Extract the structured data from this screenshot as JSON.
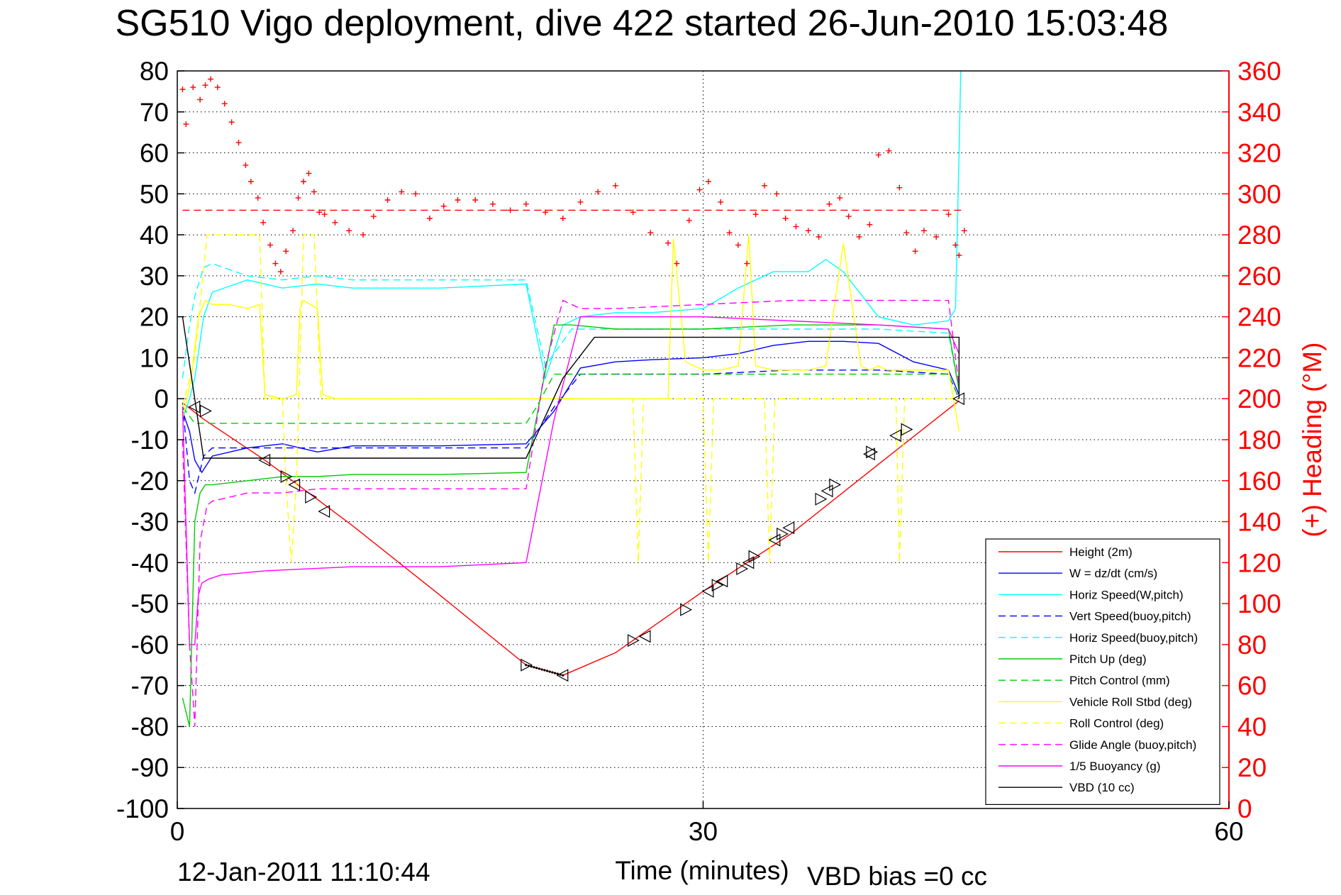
{
  "chart_data": {
    "type": "line",
    "title": "SG510 Vigo deployment, dive 422 started 26-Jun-2010 15:03:48",
    "xlabel": "Time (minutes)",
    "ylabel": "",
    "ylabel_right": "(+) Heading (°M)",
    "xlim": [
      0,
      60
    ],
    "ylim": [
      -100,
      80
    ],
    "ylim_right": [
      0,
      360
    ],
    "xticks": [
      "0",
      "30",
      "60"
    ],
    "yticks": [
      "80",
      "70",
      "60",
      "50",
      "40",
      "30",
      "20",
      "10",
      "0",
      "-10",
      "-20",
      "-30",
      "-40",
      "-50",
      "-60",
      "-70",
      "-80",
      "-90",
      "-100"
    ],
    "yticks_right": [
      "360",
      "340",
      "320",
      "300",
      "280",
      "260",
      "240",
      "220",
      "200",
      "180",
      "160",
      "140",
      "120",
      "100",
      "80",
      "60",
      "40",
      "20",
      "0"
    ],
    "grid": true,
    "legend_position": "bottom-right",
    "footer_left": "12-Jan-2011 11:10:44",
    "footer_right": "VBD bias =0 cc",
    "colors": {
      "axis": "#000000",
      "right_axis": "#ff0000",
      "grid": "#000000"
    },
    "series": [
      {
        "name": "Height (2m)",
        "color": "#ff0000",
        "dash": "",
        "x": [
          0.3,
          1.5,
          5,
          10,
          15,
          19.9,
          22,
          25,
          30,
          35,
          40,
          44.6
        ],
        "y": [
          -1,
          -5,
          -15,
          -31,
          -48,
          -65,
          -67.5,
          -62,
          -47,
          -33,
          -16,
          -0.5
        ]
      },
      {
        "name": "W = dz/dt (cm/s)",
        "color": "#0000ff",
        "dash": "",
        "x": [
          0.3,
          0.7,
          1,
          1.4,
          2,
          4,
          6,
          8,
          10,
          15,
          19.9,
          21.5,
          23,
          25,
          27,
          30,
          32,
          34,
          36,
          38,
          40,
          42,
          44,
          44.6
        ],
        "y": [
          -3,
          -8,
          -15,
          -18,
          -14,
          -12,
          -11,
          -13,
          -11.5,
          -11.5,
          -11,
          -3,
          7.5,
          9,
          9.5,
          10,
          11,
          13,
          14,
          14,
          13.5,
          9,
          7,
          1
        ]
      },
      {
        "name": "Horiz Speed(W,pitch)",
        "color": "#00ffff",
        "dash": "",
        "x": [
          0.3,
          0.7,
          1,
          1.5,
          2,
          4,
          6,
          8,
          10,
          15,
          19.9,
          21,
          22,
          23,
          25,
          27,
          30,
          32,
          34,
          36,
          37,
          38,
          40,
          42,
          44,
          44.4,
          44.6,
          44.7
        ],
        "y": [
          -5,
          0,
          5,
          20,
          26,
          29,
          27,
          28,
          27,
          27,
          28,
          5,
          18,
          20,
          21,
          21,
          22,
          27,
          31,
          31,
          34,
          31,
          20,
          18,
          19,
          22,
          60,
          80
        ]
      },
      {
        "name": "Vert Speed(buoy,pitch)",
        "color": "#0000ff",
        "dash": "10,6",
        "x": [
          0.3,
          0.7,
          1,
          1.5,
          2,
          4,
          6,
          8,
          10,
          15,
          19.9,
          21.5,
          23,
          25,
          30,
          35,
          40,
          44,
          44.6
        ],
        "y": [
          -1,
          -20,
          -23,
          -14,
          -12,
          -12,
          -12,
          -12,
          -12,
          -12,
          -12,
          -2,
          6,
          6,
          6,
          7,
          7,
          6,
          0
        ]
      },
      {
        "name": "Horiz Speed(buoy,pitch)",
        "color": "#00ffff",
        "dash": "10,6",
        "x": [
          0.3,
          0.7,
          1,
          1.5,
          2,
          4,
          6,
          8,
          10,
          15,
          19.9,
          21,
          22.5,
          25,
          30,
          35,
          40,
          44,
          44.6
        ],
        "y": [
          5,
          18,
          25,
          32,
          33,
          30,
          29,
          30,
          29,
          29,
          29,
          8,
          17,
          17,
          17,
          17,
          17,
          16,
          2
        ]
      },
      {
        "name": "Pitch Up (deg)",
        "color": "#00cc00",
        "dash": "",
        "x": [
          0.3,
          0.7,
          1,
          1.3,
          1.6,
          2,
          4,
          6,
          8,
          10,
          15,
          19.9,
          21.5,
          22.5,
          25,
          30,
          35,
          40,
          44,
          44.6
        ],
        "y": [
          -73,
          -80,
          -30,
          -23,
          -21,
          -21,
          -20,
          -19,
          -19,
          -18.5,
          -18.5,
          -18,
          18,
          18,
          17,
          17,
          18,
          18,
          17,
          2
        ]
      },
      {
        "name": "Pitch Control (mm)",
        "color": "#00cc00",
        "dash": "10,6",
        "x": [
          0.3,
          1,
          1.5,
          4,
          10,
          15,
          19.9,
          20.5,
          21.5,
          25,
          30,
          35,
          40,
          44,
          44.6
        ],
        "y": [
          -2,
          -6,
          -6,
          -6,
          -6,
          -6,
          -6,
          -2,
          6,
          6,
          6,
          6,
          6,
          6,
          0
        ]
      },
      {
        "name": "Vehicle Roll Stbd (deg)",
        "color": "#ffff00",
        "dash": "",
        "x": [
          0.3,
          0.8,
          1.2,
          1.6,
          2,
          3,
          4,
          4.7,
          5,
          6,
          6.8,
          7,
          7.2,
          8,
          8.3,
          9,
          10,
          15,
          19.9,
          21,
          25,
          28,
          28.3,
          29,
          30,
          31,
          32,
          32.6,
          33,
          34,
          36,
          37,
          38,
          39,
          39.5,
          40,
          40.5,
          41,
          44,
          44.6
        ],
        "y": [
          -5,
          5,
          20,
          24,
          23,
          23,
          22,
          23,
          1,
          0,
          1,
          22,
          24,
          22,
          1,
          0,
          0,
          0,
          0,
          0,
          0,
          0,
          39,
          9,
          7,
          7,
          8,
          40,
          8,
          7,
          7,
          8,
          38,
          8,
          7,
          8,
          7,
          7,
          7,
          -8
        ]
      },
      {
        "name": "Roll Control (deg)",
        "color": "#ffff00",
        "dash": "10,6",
        "x": [
          0.3,
          1,
          1.7,
          4.7,
          5,
          6,
          6.2,
          6.5,
          6.8,
          7.2,
          7.8,
          8.2,
          8.4,
          15,
          19.9,
          25,
          26,
          26.3,
          26.6,
          27,
          30,
          30.3,
          30.6,
          31,
          33.5,
          33.8,
          34.1,
          34.5,
          36,
          37,
          38,
          41,
          41.2,
          41.5,
          41.8,
          42.2,
          44,
          44.6
        ],
        "y": [
          -2,
          10,
          40,
          40,
          0,
          0,
          -20,
          -40,
          -20,
          40,
          40,
          0,
          0,
          0,
          0,
          0,
          0,
          -40,
          0,
          0,
          0,
          -40,
          0,
          0,
          0,
          -40,
          0,
          0,
          0,
          0,
          0,
          0,
          -40,
          0,
          0,
          0,
          0,
          0
        ]
      },
      {
        "name": "Glide Angle (buoy,pitch)",
        "color": "#ff00ff",
        "dash": "10,6",
        "x": [
          0.3,
          0.7,
          1,
          1.3,
          1.7,
          2,
          4,
          6,
          8,
          10,
          15,
          19.9,
          21,
          22,
          23,
          25,
          30,
          35,
          40,
          44,
          44.6
        ],
        "y": [
          -10,
          -60,
          -80,
          -35,
          -26,
          -25,
          -23,
          -23,
          -22,
          -22,
          -22,
          -22,
          8,
          24,
          22,
          22,
          23,
          24,
          24,
          24,
          3
        ]
      },
      {
        "name": "1/5 Buoyancy (g)",
        "color": "#ff00ff",
        "dash": "",
        "x": [
          0.3,
          0.7,
          1,
          1.2,
          1.4,
          1.8,
          2.5,
          5,
          10,
          15,
          19.9,
          21.5,
          23,
          25,
          30,
          35,
          40,
          44,
          44.6
        ],
        "y": [
          -2,
          -60,
          -60,
          -48,
          -45,
          -44,
          -43,
          -42,
          -41,
          -41,
          -40,
          -5,
          20,
          20,
          20,
          19,
          18,
          17,
          11
        ]
      },
      {
        "name": "VBD (10 cc)",
        "color": "#000000",
        "dash": "",
        "x": [
          0.3,
          1.5,
          2,
          10,
          19.9,
          22,
          23.8,
          44.6,
          44.6
        ],
        "y": [
          20,
          -14.5,
          -14.5,
          -14.5,
          -14.5,
          5,
          15,
          15,
          0
        ]
      }
    ],
    "triangle_markers": {
      "x": [
        1,
        1.6,
        5,
        6.2,
        6.7,
        7.6,
        8.4,
        19.9,
        22,
        26,
        26.7,
        29,
        30.3,
        30.8,
        31.1,
        32.2,
        32.6,
        32.9,
        34.1,
        34.5,
        34.9,
        36.7,
        37.1,
        37.5,
        39.5,
        39.6,
        41,
        41.6,
        44.6
      ],
      "y": [
        -2,
        -3,
        -15,
        -19,
        -21,
        -24,
        -27.5,
        -65,
        -67.5,
        -59,
        -58,
        -51.5,
        -47,
        -45.5,
        -44.5,
        -41.5,
        -40,
        -38.5,
        -34.5,
        -33,
        -31.5,
        -24.5,
        -22.5,
        -21,
        -13.5,
        -13,
        -9,
        -7.5,
        0
      ]
    },
    "heading": {
      "mean": 292,
      "x": [
        0.3,
        0.5,
        0.9,
        1.3,
        1.6,
        1.9,
        2.3,
        2.7,
        3.1,
        3.5,
        3.9,
        4.2,
        4.6,
        4.9,
        5.3,
        5.6,
        5.9,
        6.2,
        6.6,
        6.9,
        7.2,
        7.5,
        7.8,
        8.1,
        8.4,
        9,
        9.8,
        10.6,
        11.2,
        12,
        12.8,
        13.6,
        14.4,
        15.2,
        16,
        17,
        18,
        19,
        19.9,
        21,
        22,
        23,
        24,
        25,
        26,
        27,
        28,
        28.5,
        29.2,
        29.8,
        30.3,
        31,
        31.5,
        32,
        32.5,
        33,
        33.5,
        34.2,
        34.7,
        35.3,
        36,
        36.6,
        37.2,
        37.8,
        38.3,
        38.9,
        39.5,
        40,
        40.6,
        41.2,
        41.6,
        42.1,
        42.6,
        43.3,
        44,
        44.4,
        44.6,
        44.9
      ],
      "y": [
        351,
        334,
        352,
        346,
        353,
        356,
        352,
        344,
        335,
        325,
        314,
        306,
        298,
        286,
        275,
        266,
        262,
        272,
        282,
        298,
        306,
        310,
        301,
        291,
        290,
        286,
        282,
        280,
        289,
        297,
        301,
        300,
        288,
        294,
        297,
        297,
        295,
        292,
        295,
        291,
        288,
        296,
        301,
        304,
        291,
        281,
        276,
        266,
        287,
        302,
        306,
        296,
        281,
        275,
        266,
        290,
        304,
        300,
        288,
        284,
        282,
        279,
        295,
        298,
        289,
        279,
        285,
        319,
        321,
        303,
        281,
        272,
        282,
        279,
        290,
        275,
        270,
        282
      ]
    }
  }
}
